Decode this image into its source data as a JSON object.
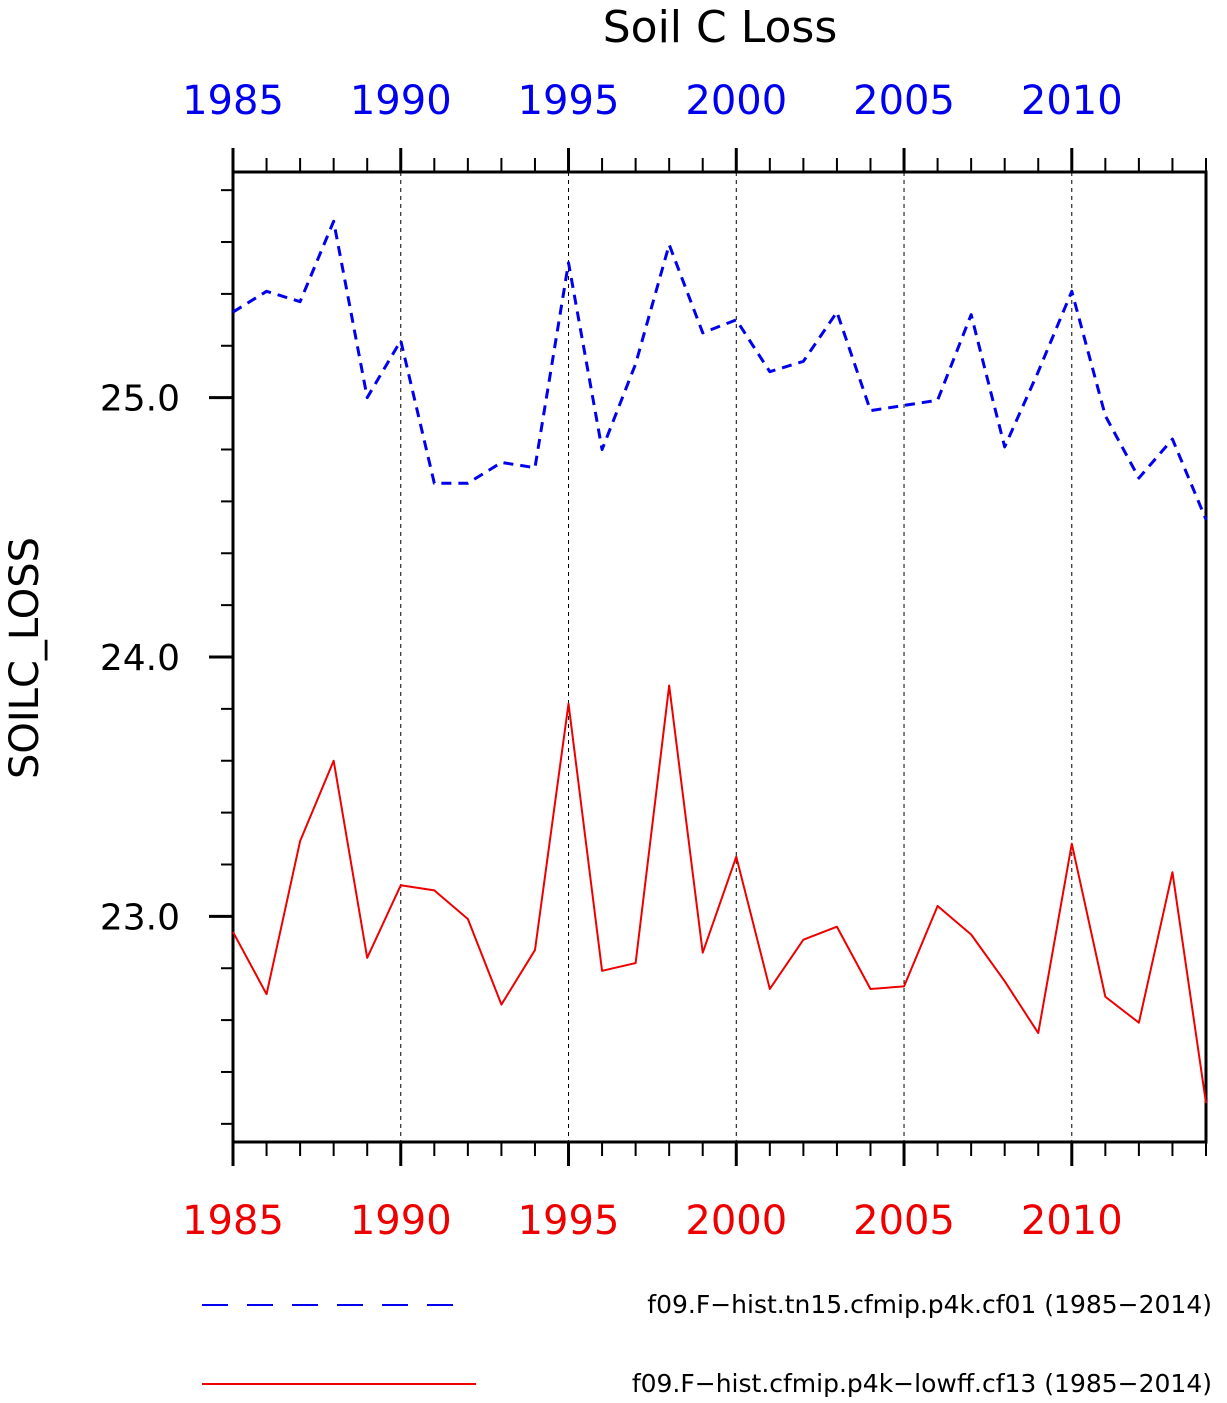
{
  "chart_data": {
    "type": "line",
    "title": "Soil C Loss",
    "ylabel": "SOILC_LOSS",
    "xlabel": "",
    "xlim": [
      1985,
      2014
    ],
    "ylim": [
      22.13,
      25.87
    ],
    "yticks": [
      "23.0",
      "24.0",
      "25.0"
    ],
    "ytick_values": [
      23.0,
      24.0,
      25.0
    ],
    "xticks": [
      "1985",
      "1990",
      "1995",
      "2000",
      "2005",
      "2010"
    ],
    "xtick_values": [
      1985,
      1990,
      1995,
      2000,
      2005,
      2010
    ],
    "vertical_gridlines": [
      1990,
      1995,
      2000,
      2005,
      2010
    ],
    "x": [
      1985,
      1986,
      1987,
      1988,
      1989,
      1990,
      1991,
      1992,
      1993,
      1994,
      1995,
      1996,
      1997,
      1998,
      1999,
      2000,
      2001,
      2002,
      2003,
      2004,
      2005,
      2006,
      2007,
      2008,
      2009,
      2010,
      2011,
      2012,
      2013,
      2014
    ],
    "series": [
      {
        "name": "f09.F−hist.tn15.cfmip.p4k.cf01 (1985−2014)",
        "color": "#0000ee",
        "style": "dashed",
        "values": [
          25.33,
          25.41,
          25.37,
          25.68,
          25.0,
          25.22,
          24.67,
          24.67,
          24.75,
          24.73,
          25.52,
          24.8,
          25.13,
          25.59,
          25.25,
          25.3,
          25.1,
          25.14,
          25.33,
          24.95,
          24.97,
          24.99,
          25.32,
          24.81,
          25.1,
          25.41,
          24.93,
          24.69,
          24.84,
          24.53
        ]
      },
      {
        "name": "f09.F−hist.cfmip.p4k−lowff.cf13 (1985−2014)",
        "color": "#ee0000",
        "style": "solid",
        "values": [
          22.94,
          22.7,
          23.29,
          23.6,
          22.84,
          23.12,
          23.1,
          22.99,
          22.66,
          22.87,
          23.82,
          22.79,
          22.82,
          23.89,
          22.86,
          23.23,
          22.72,
          22.91,
          22.96,
          22.72,
          22.73,
          23.04,
          22.93,
          22.75,
          22.55,
          23.28,
          22.69,
          22.59,
          23.17,
          22.28
        ]
      }
    ],
    "legend_position": "bottom",
    "grid": "vertical dashed lines at major x ticks"
  }
}
